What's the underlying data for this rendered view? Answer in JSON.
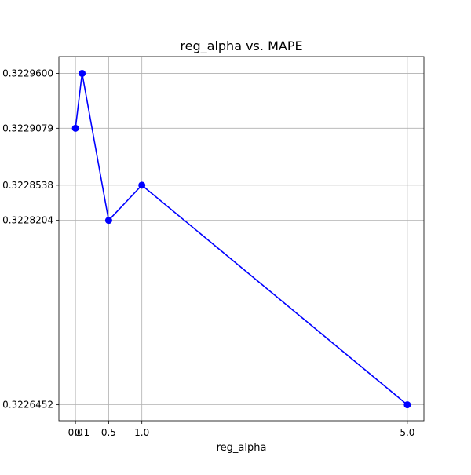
{
  "chart_data": {
    "type": "line",
    "title": "reg_alpha vs. MAPE",
    "xlabel": "reg_alpha",
    "ylabel": "",
    "grid": true,
    "xlim": [
      -0.25,
      5.25
    ],
    "ylim": [
      0.32263,
      0.322976
    ],
    "x_ticks": [
      {
        "value": 0.0,
        "label": "0.0"
      },
      {
        "value": 0.1,
        "label": "0.1"
      },
      {
        "value": 0.5,
        "label": "0.5"
      },
      {
        "value": 1.0,
        "label": "1.0"
      },
      {
        "value": 5.0,
        "label": "5.0"
      }
    ],
    "y_ticks": [
      {
        "value": 0.32296,
        "label": "0.3229600"
      },
      {
        "value": 0.3229079,
        "label": "0.3229079"
      },
      {
        "value": 0.3228538,
        "label": "0.3228538"
      },
      {
        "value": 0.3228204,
        "label": "0.3228204"
      },
      {
        "value": 0.3226452,
        "label": "0.3226452"
      }
    ],
    "series": [
      {
        "color": "#0000ff",
        "marker": "circle",
        "x": [
          0.0,
          0.1,
          0.5,
          1.0,
          5.0
        ],
        "y": [
          0.3229079,
          0.32296,
          0.3228204,
          0.3228538,
          0.3226452
        ]
      }
    ]
  }
}
